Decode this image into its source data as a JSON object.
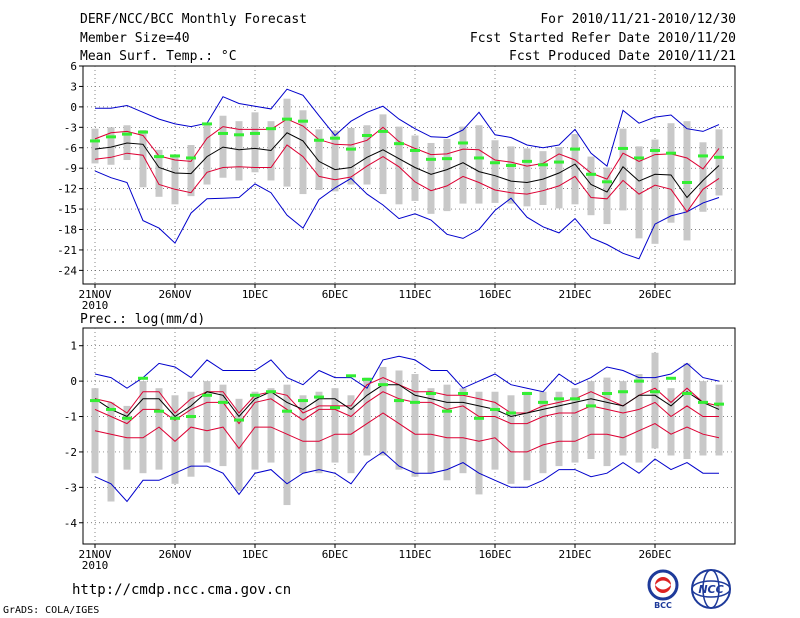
{
  "header": {
    "title": "DERF/NCC/BCC Monthly Forecast",
    "member_size": "Member Size=40",
    "variable": "Mean Surf. Temp.: °C",
    "period": "For 2010/11/21-2010/12/30",
    "started": "Fcst Started Refer Date 2010/11/20",
    "produced": "Fcst Produced Date 2010/11/21"
  },
  "footer": {
    "url": "http://cmdp.ncc.cma.gov.cn",
    "grads": "GrADS: COLA/IGES",
    "logo_bcc": "BCC",
    "logo_ncc": "NCC"
  },
  "colors": {
    "envelope": "#0000cc",
    "quartile": "#dd0033",
    "median": "#000000",
    "box": "#c8c8c8",
    "marker": "#33ee33",
    "grid": "#555555"
  },
  "chart_data": [
    {
      "type": "box-ensemble",
      "title": "Mean Surf. Temp.: °C",
      "ylabel": "°C",
      "ylim": [
        -26,
        6
      ],
      "yticks": [
        6,
        3,
        0,
        -3,
        -6,
        -9,
        -12,
        -15,
        -18,
        -21,
        -24
      ],
      "xticks": [
        "21NOV",
        "26NOV",
        "1DEC",
        "6DEC",
        "11DEC",
        "16DEC",
        "21DEC",
        "26DEC"
      ],
      "xyear": "2010",
      "days": 40,
      "series": [
        {
          "name": "max",
          "values": [
            -0.2,
            -0.2,
            0.2,
            -0.8,
            -1.8,
            -2.5,
            -2.9,
            -2.4,
            1.5,
            0.5,
            0.1,
            -0.3,
            2.6,
            1.7,
            -1.3,
            -4.2,
            -2.1,
            -0.8,
            0.1,
            -1.8,
            -3.2,
            -4.4,
            -4.5,
            -3.4,
            -0.8,
            -4.1,
            -4.5,
            -5.6,
            -6.0,
            -5.6,
            -3.3,
            -6.8,
            -8.7,
            -0.5,
            -2.4,
            -1.5,
            -1.2,
            -3.2,
            -3.6,
            -2.6
          ]
        },
        {
          "name": "q3",
          "values": [
            -4.7,
            -3.8,
            -3.6,
            -4.2,
            -7.2,
            -7.8,
            -8.0,
            -4.6,
            -2.9,
            -3.3,
            -3.3,
            -3.3,
            -1.8,
            -2.8,
            -4.8,
            -5.5,
            -5.6,
            -4.9,
            -3.0,
            -5.1,
            -6.1,
            -7.0,
            -6.9,
            -6.2,
            -6.3,
            -7.8,
            -8.1,
            -8.7,
            -8.3,
            -6.9,
            -7.8,
            -9.7,
            -10.6,
            -6.8,
            -8.0,
            -7.0,
            -6.9,
            -7.5,
            -9.1,
            -6.1
          ]
        },
        {
          "name": "median",
          "values": [
            -6.2,
            -5.9,
            -5.3,
            -5.5,
            -8.9,
            -9.7,
            -9.8,
            -7.3,
            -5.9,
            -6.3,
            -6.1,
            -6.4,
            -3.8,
            -5.0,
            -8.0,
            -9.2,
            -8.9,
            -7.4,
            -6.3,
            -7.6,
            -8.9,
            -9.9,
            -9.2,
            -8.2,
            -9.5,
            -10.1,
            -10.9,
            -11.1,
            -10.6,
            -9.7,
            -8.4,
            -11.4,
            -12.5,
            -8.8,
            -10.9,
            -9.9,
            -10.0,
            -13.3,
            -10.8,
            -8.6
          ]
        },
        {
          "name": "q1",
          "values": [
            -7.7,
            -7.4,
            -6.8,
            -7.1,
            -11.4,
            -12.1,
            -12.6,
            -9.6,
            -8.9,
            -8.8,
            -8.9,
            -8.9,
            -5.6,
            -7.3,
            -10.2,
            -10.7,
            -10.3,
            -8.7,
            -7.3,
            -8.8,
            -11.0,
            -12.3,
            -11.6,
            -10.2,
            -11.1,
            -12.2,
            -12.6,
            -12.8,
            -12.3,
            -11.6,
            -10.2,
            -13.3,
            -13.5,
            -10.8,
            -12.8,
            -11.5,
            -12.1,
            -15.4,
            -12.1,
            -10.5
          ]
        },
        {
          "name": "min",
          "values": [
            -9.4,
            -10.4,
            -11.1,
            -16.7,
            -17.8,
            -20.0,
            -15.6,
            -13.5,
            -13.4,
            -13.3,
            -11.3,
            -12.6,
            -15.9,
            -17.8,
            -13.6,
            -11.9,
            -10.5,
            -12.8,
            -14.4,
            -16.4,
            -15.7,
            -16.6,
            -18.7,
            -19.3,
            -18.0,
            -15.2,
            -13.4,
            -16.2,
            -17.6,
            -18.5,
            -16.4,
            -19.2,
            -20.2,
            -21.5,
            -22.3,
            -17.2,
            -16.0,
            -15.4,
            -14.1,
            -13.3
          ]
        },
        {
          "name": "box_high",
          "values": [
            -3.2,
            -3.0,
            -2.7,
            -3.4,
            -6.3,
            -7.1,
            -5.6,
            -2.7,
            -1.3,
            -2.1,
            -0.8,
            -2.1,
            1.2,
            -0.5,
            -3.3,
            -3.5,
            -3.1,
            -2.7,
            -1.1,
            -2.9,
            -4.2,
            -5.3,
            -4.7,
            -2.9,
            -2.7,
            -4.9,
            -5.8,
            -6.1,
            -6.5,
            -5.9,
            -4.0,
            -7.3,
            -8.9,
            -3.2,
            -5.8,
            -4.8,
            -2.4,
            -2.1,
            -5.2,
            -3.3
          ]
        },
        {
          "name": "box_low",
          "values": [
            -8.3,
            -8.5,
            -7.8,
            -11.8,
            -13.2,
            -14.3,
            -13.1,
            -11.4,
            -10.4,
            -10.8,
            -9.6,
            -10.8,
            -11.7,
            -12.8,
            -12.2,
            -12.4,
            -11.4,
            -11.4,
            -12.8,
            -14.3,
            -13.8,
            -15.7,
            -15.3,
            -14.2,
            -14.2,
            -14.1,
            -14.2,
            -14.6,
            -14.4,
            -14.9,
            -14.3,
            -15.9,
            -17.2,
            -15.2,
            -19.3,
            -20.1,
            -17.0,
            -19.6,
            -15.4,
            -13.0
          ]
        },
        {
          "name": "marker",
          "values": [
            -5.0,
            -4.4,
            -4.0,
            -3.7,
            -7.3,
            -7.2,
            -7.5,
            -2.5,
            -3.9,
            -4.1,
            -3.9,
            -3.2,
            -1.8,
            -2.1,
            -4.9,
            -4.6,
            -6.2,
            -4.2,
            -3.6,
            -5.4,
            -6.4,
            -7.7,
            -7.6,
            -5.3,
            -7.5,
            -8.2,
            -8.6,
            -8.0,
            -8.5,
            -8.1,
            -6.2,
            -9.9,
            -11.0,
            -6.1,
            -7.5,
            -6.4,
            -6.8,
            -11.1,
            -7.2,
            -7.4
          ]
        }
      ]
    },
    {
      "type": "box-ensemble",
      "title": "Prec.: log(mm/d)",
      "ylabel": "log(mm/d)",
      "ylim": [
        -4.6,
        1.5
      ],
      "yticks": [
        1,
        0,
        -1,
        -2,
        -3,
        -4
      ],
      "xticks": [
        "21NOV",
        "26NOV",
        "1DEC",
        "6DEC",
        "11DEC",
        "16DEC",
        "21DEC",
        "26DEC"
      ],
      "xyear": "2010",
      "days": 40,
      "series": [
        {
          "name": "max",
          "values": [
            0.2,
            0.1,
            -0.2,
            0.1,
            0.5,
            0.4,
            0.1,
            0.6,
            0.3,
            0.3,
            0.3,
            0.6,
            0.1,
            -0.1,
            0.3,
            0.1,
            0.1,
            -0.2,
            0.6,
            0.7,
            0.6,
            0.3,
            0.3,
            -0.2,
            0.0,
            0.2,
            -0.1,
            -0.2,
            -0.3,
            0.2,
            -0.1,
            0.1,
            0.4,
            0.3,
            0.1,
            0.1,
            0.2,
            0.5,
            0.1,
            0.0
          ]
        },
        {
          "name": "q3",
          "values": [
            -0.5,
            -0.6,
            -0.9,
            -0.3,
            -0.3,
            -0.9,
            -0.5,
            -0.3,
            -0.3,
            -0.9,
            -0.4,
            -0.3,
            -0.4,
            -0.9,
            -0.7,
            -0.7,
            -0.7,
            -0.1,
            0.1,
            -0.1,
            -0.3,
            -0.3,
            -0.4,
            -0.4,
            -0.5,
            -0.6,
            -0.9,
            -0.9,
            -0.7,
            -0.6,
            -0.5,
            -0.3,
            -0.5,
            -0.7,
            -0.4,
            -0.2,
            -0.6,
            -0.2,
            -0.6,
            -0.7
          ]
        },
        {
          "name": "median",
          "values": [
            -0.5,
            -0.8,
            -1.0,
            -0.5,
            -0.5,
            -1.0,
            -0.7,
            -0.3,
            -0.4,
            -1.0,
            -0.5,
            -0.3,
            -0.6,
            -0.8,
            -0.5,
            -0.5,
            -0.8,
            -0.4,
            -0.1,
            -0.1,
            -0.4,
            -0.5,
            -0.6,
            -0.6,
            -0.7,
            -0.8,
            -1.0,
            -0.9,
            -0.8,
            -0.7,
            -0.6,
            -0.5,
            -0.6,
            -0.7,
            -0.4,
            -0.4,
            -0.7,
            -0.3,
            -0.6,
            -0.8
          ]
        },
        {
          "name": "q1",
          "values": [
            -0.8,
            -1.0,
            -1.2,
            -0.8,
            -0.8,
            -1.1,
            -0.8,
            -0.6,
            -0.6,
            -1.2,
            -0.6,
            -0.5,
            -0.8,
            -1.1,
            -0.8,
            -0.8,
            -1.0,
            -0.6,
            -0.3,
            -0.5,
            -0.6,
            -0.6,
            -0.8,
            -0.7,
            -1.0,
            -1.0,
            -1.2,
            -1.2,
            -1.0,
            -0.9,
            -0.9,
            -0.7,
            -0.8,
            -0.9,
            -0.8,
            -0.6,
            -1.0,
            -0.7,
            -1.0,
            -1.0
          ]
        },
        {
          "name": "q_low",
          "values": [
            -1.4,
            -1.5,
            -1.6,
            -1.6,
            -1.3,
            -1.7,
            -1.3,
            -1.4,
            -1.3,
            -1.9,
            -1.3,
            -1.3,
            -1.5,
            -1.7,
            -1.7,
            -1.5,
            -1.5,
            -1.2,
            -0.9,
            -1.2,
            -1.5,
            -1.5,
            -1.6,
            -1.6,
            -1.7,
            -1.6,
            -2.0,
            -2.0,
            -1.8,
            -1.7,
            -1.7,
            -1.5,
            -1.5,
            -1.6,
            -1.4,
            -1.2,
            -1.5,
            -1.3,
            -1.5,
            -1.6
          ]
        },
        {
          "name": "min",
          "values": [
            -2.7,
            -2.9,
            -3.4,
            -2.8,
            -2.8,
            -2.6,
            -2.4,
            -2.4,
            -2.6,
            -3.2,
            -2.6,
            -2.5,
            -2.9,
            -2.6,
            -2.5,
            -2.6,
            -2.9,
            -2.3,
            -2.0,
            -2.4,
            -2.6,
            -2.6,
            -2.5,
            -2.3,
            -2.6,
            -2.8,
            -3.0,
            -3.0,
            -2.8,
            -2.5,
            -2.5,
            -2.7,
            -2.6,
            -2.3,
            -2.6,
            -2.2,
            -2.5,
            -2.3,
            -2.6,
            -2.6
          ]
        },
        {
          "name": "box_high",
          "values": [
            -0.2,
            -0.6,
            -0.7,
            0.0,
            -0.2,
            -0.4,
            -0.3,
            0.0,
            -0.1,
            -0.5,
            -0.3,
            -0.2,
            -0.1,
            -0.4,
            -0.3,
            -0.2,
            -0.4,
            0.1,
            0.4,
            0.3,
            0.2,
            -0.2,
            -0.1,
            -0.2,
            -0.3,
            -0.3,
            -0.4,
            -0.3,
            -0.3,
            -0.3,
            -0.2,
            0.0,
            0.1,
            0.0,
            0.2,
            0.8,
            -0.2,
            0.5,
            0.0,
            -0.1
          ]
        },
        {
          "name": "box_low",
          "values": [
            -2.6,
            -3.4,
            -2.5,
            -2.6,
            -2.5,
            -2.9,
            -2.7,
            -2.3,
            -2.4,
            -3.1,
            -2.5,
            -2.3,
            -3.5,
            -2.6,
            -2.6,
            -2.3,
            -2.6,
            -2.1,
            -2.1,
            -2.5,
            -2.7,
            -2.6,
            -2.8,
            -2.6,
            -3.2,
            -2.5,
            -2.9,
            -2.8,
            -2.6,
            -2.4,
            -2.3,
            -2.2,
            -2.4,
            -2.1,
            -2.3,
            -1.9,
            -2.1,
            -2.2,
            -2.1,
            -2.1
          ]
        },
        {
          "name": "marker",
          "values": [
            -0.55,
            -0.8,
            -1.05,
            0.08,
            -0.85,
            -1.05,
            -1.0,
            -0.4,
            -0.6,
            -1.1,
            -0.4,
            -0.3,
            -0.85,
            -0.55,
            -0.45,
            -0.75,
            0.15,
            0.05,
            -0.1,
            -0.55,
            -0.6,
            -0.35,
            -0.85,
            -0.35,
            -1.05,
            -0.8,
            -0.9,
            -0.35,
            -0.6,
            -0.5,
            -0.5,
            -0.7,
            -0.35,
            -0.3,
            0.0,
            -0.3,
            0.08,
            -0.35,
            -0.6,
            -0.65
          ]
        }
      ]
    }
  ]
}
